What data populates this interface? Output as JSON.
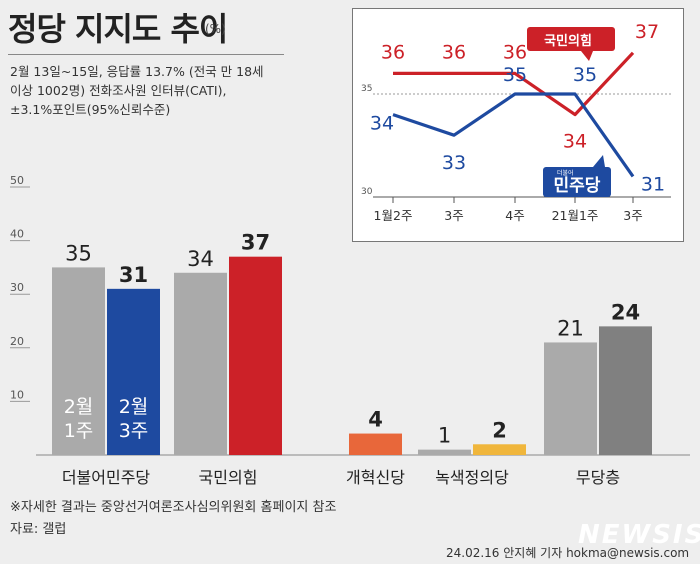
{
  "header": {
    "title": "정당 지지도 추이",
    "unit": "(%)",
    "survey_lines": [
      "2월 13일~15일, 응답률 13.7% (전국 만 18세",
      "이상 1002명) 전화조사원 인터뷰(CATI),",
      "±3.1%포인트(95%신뢰수준)"
    ]
  },
  "footer": {
    "footnote": "※자세한 결과는 중앙선거여론조사심의위원회 홈페이지 참조",
    "source": "자료: 갤럽",
    "logo": "NEWSIS",
    "credit": "24.02.16 안지혜 기자 hokma@newsis.com"
  },
  "colors": {
    "gray_light": "#aaaaaa",
    "gray_dark": "#808080",
    "democratic": "#1e4aa0",
    "ppp": "#cc2128",
    "reform": "#e8673a",
    "green": "#f0b63c",
    "background": "#eeeeee"
  },
  "chart_data": [
    {
      "type": "bar",
      "categories": [
        "더불어민주당",
        "국민의힘",
        "개혁신당",
        "녹색정의당",
        "무당층"
      ],
      "series": [
        {
          "name": "2월 1주",
          "values": [
            35,
            34,
            null,
            1,
            21
          ]
        },
        {
          "name": "2월 3주",
          "values": [
            31,
            37,
            4,
            2,
            24
          ]
        }
      ],
      "series_label_lines": [
        [
          "2월",
          "1주"
        ],
        [
          "2월",
          "3주"
        ]
      ],
      "yticks": [
        10,
        20,
        30,
        40,
        50
      ],
      "ylim": [
        0,
        50
      ]
    },
    {
      "type": "line",
      "x": [
        "1월2주",
        "3주",
        "4주",
        "21월1주",
        "3주"
      ],
      "series": [
        {
          "name": "국민의힘",
          "color": "#cc2128",
          "values": [
            36,
            36,
            36,
            34,
            37
          ]
        },
        {
          "name": "민주당",
          "color": "#1e4aa0",
          "values": [
            34,
            33,
            35,
            35,
            31
          ]
        }
      ],
      "series_badges": [
        "국민의힘",
        "민주당"
      ],
      "badge_small_text": "더불어",
      "ylim": [
        30,
        38
      ],
      "yticks": [
        30,
        35
      ]
    }
  ]
}
